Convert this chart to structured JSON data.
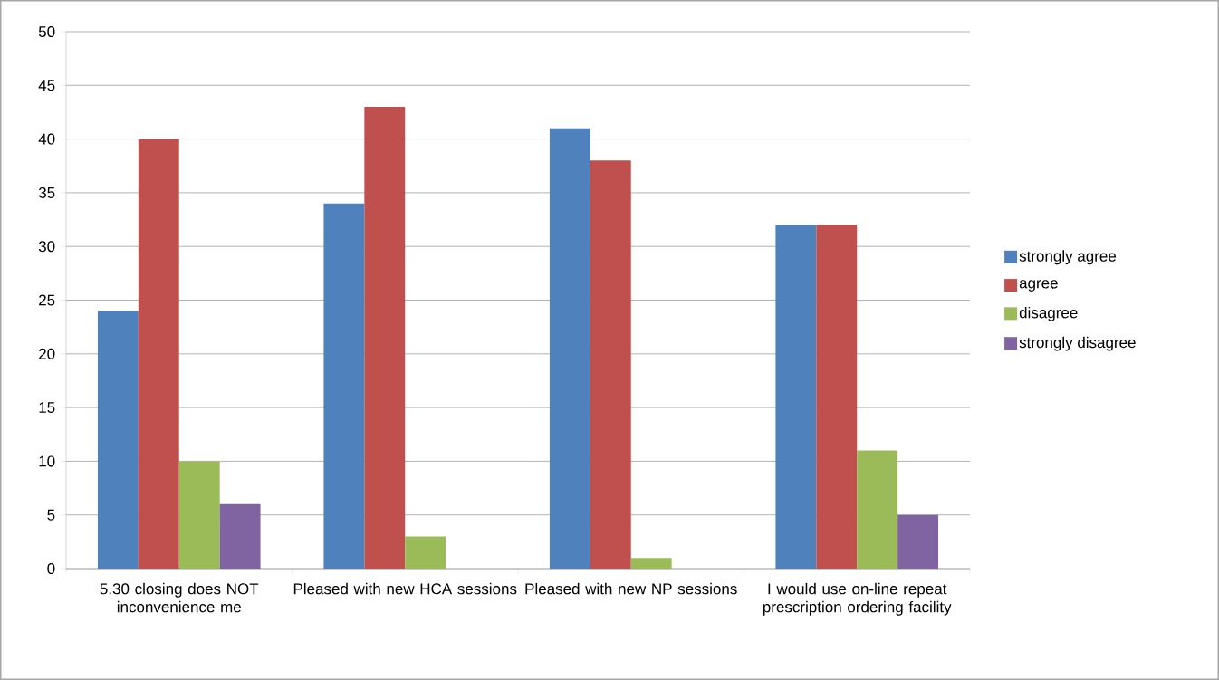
{
  "chart_data": {
    "type": "bar",
    "categories": [
      "5.30 closing does NOT inconvenience me",
      "Pleased with new HCA sessions",
      "Pleased with new NP sessions",
      "I would use on-line repeat prescription ordering facility"
    ],
    "series": [
      {
        "name": "strongly agree",
        "color": "#4f81bd",
        "values": [
          24,
          34,
          41,
          32
        ]
      },
      {
        "name": "agree",
        "color": "#c0504d",
        "values": [
          40,
          43,
          38,
          32
        ]
      },
      {
        "name": "disagree",
        "color": "#9bbb59",
        "values": [
          10,
          3,
          1,
          11
        ]
      },
      {
        "name": "strongly disagree",
        "color": "#8064a2",
        "values": [
          6,
          0,
          0,
          5
        ]
      }
    ],
    "ylim": [
      0,
      50
    ],
    "yticks": [
      0,
      5,
      10,
      15,
      20,
      25,
      30,
      35,
      40,
      45,
      50
    ],
    "grid": "y",
    "legend": "right"
  }
}
